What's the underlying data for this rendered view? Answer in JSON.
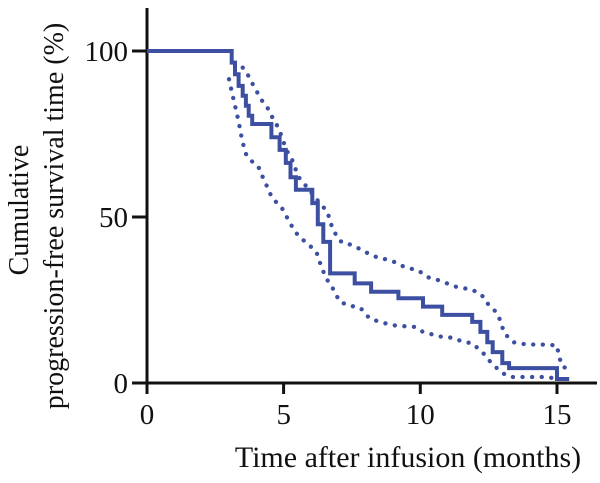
{
  "figure": {
    "background": "#ffffff",
    "description": "Kaplan-Meier curve with dotted 95% confidence bands"
  },
  "chart_data": {
    "type": "line",
    "subtype": "kaplan-meier-step",
    "title": "",
    "xlabel": "Time after infusion (months)",
    "ylabel": "Cumulative progression-free survival time (%)",
    "ylabel_lines": [
      "Cumulative",
      "progression-free survival time (%)"
    ],
    "xlim": [
      0,
      15.9
    ],
    "ylim": [
      0,
      100
    ],
    "xticks": [
      0,
      5,
      10,
      15
    ],
    "yticks": [
      100,
      50,
      0
    ],
    "xtick_labels": [
      "0",
      "5",
      "10",
      "15"
    ],
    "ytick_labels": [
      "100",
      "50",
      "0"
    ],
    "grid": false,
    "legend": "none",
    "colors": {
      "curve": "#3d4fa0",
      "axis": "#111111"
    },
    "series": [
      {
        "name": "Progression-free survival estimate",
        "style": "solid-step",
        "color": "#3d4fa0",
        "end_time": 15.45,
        "points": [
          [
            0,
            100
          ],
          [
            3.1,
            96.5
          ],
          [
            3.22,
            93
          ],
          [
            3.35,
            89.5
          ],
          [
            3.5,
            86.5
          ],
          [
            3.62,
            83.5
          ],
          [
            3.72,
            80.5
          ],
          [
            3.85,
            78
          ],
          [
            4.55,
            74
          ],
          [
            4.85,
            70.2
          ],
          [
            5.08,
            66.3
          ],
          [
            5.25,
            62
          ],
          [
            5.45,
            58.2
          ],
          [
            6.05,
            54.2
          ],
          [
            6.25,
            47.8
          ],
          [
            6.45,
            42.5
          ],
          [
            6.7,
            33
          ],
          [
            7.6,
            30
          ],
          [
            8.2,
            27.5
          ],
          [
            9.2,
            25.5
          ],
          [
            10.1,
            23
          ],
          [
            10.8,
            20.5
          ],
          [
            11.9,
            18.4
          ],
          [
            12.2,
            15.4
          ],
          [
            12.45,
            12.3
          ],
          [
            12.65,
            9.3
          ],
          [
            13.0,
            6
          ],
          [
            13.25,
            4.5
          ],
          [
            15.0,
            1.2
          ]
        ]
      },
      {
        "name": "Upper 95% confidence band",
        "style": "dotted",
        "color": "#3d4fa0",
        "points": [
          [
            3.5,
            95
          ],
          [
            3.66,
            93.3
          ],
          [
            3.8,
            91
          ],
          [
            3.95,
            88.8
          ],
          [
            4.1,
            86.5
          ],
          [
            4.25,
            84.5
          ],
          [
            4.4,
            83
          ],
          [
            4.55,
            80.5
          ],
          [
            4.7,
            78.5
          ],
          [
            4.85,
            76
          ],
          [
            5.0,
            72.5
          ],
          [
            5.15,
            69.5
          ],
          [
            5.3,
            67.5
          ],
          [
            5.42,
            64.8
          ],
          [
            5.55,
            62
          ],
          [
            5.7,
            60.5
          ],
          [
            5.85,
            59
          ],
          [
            6.0,
            57.5
          ],
          [
            6.15,
            55.8
          ],
          [
            6.3,
            54.5
          ],
          [
            6.45,
            53
          ],
          [
            6.6,
            51.5
          ],
          [
            6.75,
            47.5
          ],
          [
            6.95,
            44
          ],
          [
            7.15,
            42.2
          ],
          [
            7.5,
            41.6
          ],
          [
            7.8,
            40.3
          ],
          [
            8.15,
            38.8
          ],
          [
            8.5,
            37.6
          ],
          [
            8.85,
            37.1
          ],
          [
            9.15,
            36.1
          ],
          [
            9.45,
            34.8
          ],
          [
            9.9,
            34
          ],
          [
            10.3,
            31.8
          ],
          [
            10.65,
            31
          ],
          [
            10.95,
            30.1
          ],
          [
            11.25,
            29.1
          ],
          [
            11.55,
            28.6
          ],
          [
            11.9,
            28.1
          ],
          [
            12.25,
            26.5
          ],
          [
            12.4,
            24.4
          ],
          [
            12.6,
            22.9
          ],
          [
            12.8,
            21.1
          ],
          [
            12.95,
            18.4
          ],
          [
            13.05,
            15.4
          ],
          [
            13.2,
            13.9
          ],
          [
            13.4,
            12.3
          ],
          [
            13.7,
            11.8
          ],
          [
            14.0,
            11.6
          ],
          [
            14.35,
            11.6
          ],
          [
            14.7,
            11.5
          ],
          [
            15.0,
            11.3
          ],
          [
            15.08,
            7.8
          ],
          [
            15.22,
            4.8
          ],
          [
            15.45,
            4.4
          ]
        ]
      },
      {
        "name": "Lower 95% confidence band",
        "style": "dotted",
        "color": "#3d4fa0",
        "points": [
          [
            3.0,
            91.5
          ],
          [
            3.08,
            88.5
          ],
          [
            3.18,
            85
          ],
          [
            3.28,
            81.5
          ],
          [
            3.37,
            78
          ],
          [
            3.45,
            74.5
          ],
          [
            3.53,
            71.5
          ],
          [
            3.62,
            69
          ],
          [
            3.8,
            67
          ],
          [
            4.05,
            65.5
          ],
          [
            4.18,
            63.3
          ],
          [
            4.3,
            60.5
          ],
          [
            4.45,
            58.5
          ],
          [
            4.55,
            56
          ],
          [
            4.75,
            54.3
          ],
          [
            4.95,
            52.5
          ],
          [
            5.15,
            49.5
          ],
          [
            5.35,
            46.5
          ],
          [
            5.55,
            44.2
          ],
          [
            5.9,
            41.8
          ],
          [
            6.2,
            39.5
          ],
          [
            6.4,
            34.5
          ],
          [
            6.6,
            31
          ],
          [
            6.8,
            28.5
          ],
          [
            7.05,
            24.5
          ],
          [
            7.4,
            23.3
          ],
          [
            7.8,
            22.7
          ],
          [
            8.15,
            19.4
          ],
          [
            8.6,
            18.2
          ],
          [
            9.1,
            17.3
          ],
          [
            9.8,
            16.9
          ],
          [
            10.1,
            15.4
          ],
          [
            10.5,
            14.5
          ],
          [
            10.8,
            13.9
          ],
          [
            11.2,
            13.6
          ],
          [
            11.55,
            12.4
          ],
          [
            11.9,
            12.0
          ],
          [
            12.3,
            9.0
          ],
          [
            12.55,
            6.5
          ],
          [
            12.8,
            4.5
          ],
          [
            13.05,
            2.8
          ],
          [
            13.3,
            1.8
          ],
          [
            13.7,
            1.8
          ],
          [
            14.1,
            1.8
          ],
          [
            14.5,
            1.8
          ],
          [
            14.85,
            1.5
          ],
          [
            15.1,
            1.2
          ]
        ]
      }
    ]
  }
}
